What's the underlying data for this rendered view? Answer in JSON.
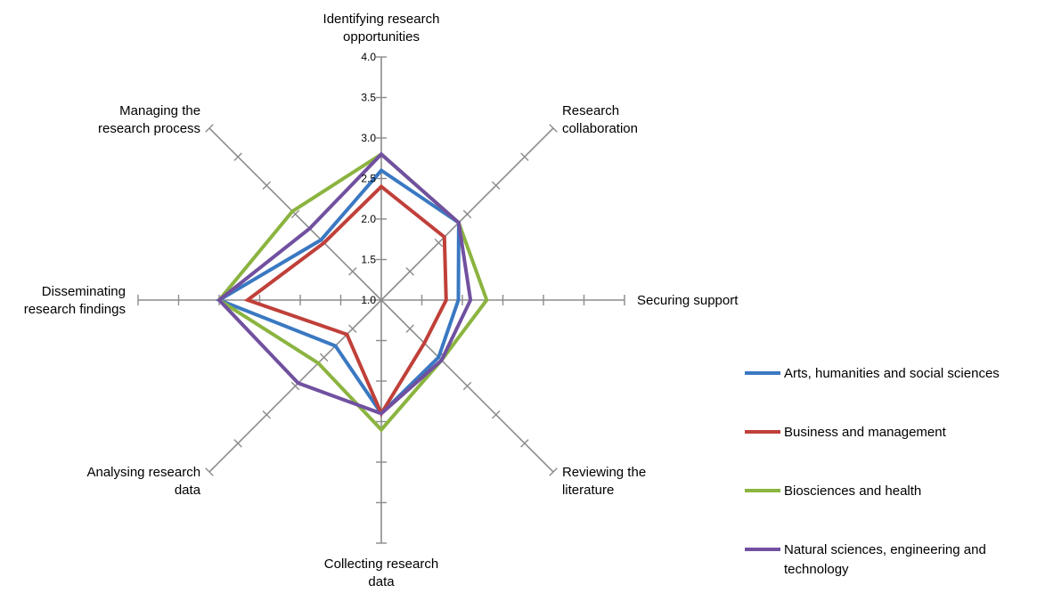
{
  "chart_data": {
    "type": "radar",
    "title": "",
    "axes": [
      {
        "label_lines": [
          "Identifying research",
          "opportunities"
        ]
      },
      {
        "label_lines": [
          "Research",
          "collaboration"
        ]
      },
      {
        "label_lines": [
          "Securing support"
        ]
      },
      {
        "label_lines": [
          "Reviewing the",
          "literature"
        ]
      },
      {
        "label_lines": [
          "Collecting research",
          "data"
        ]
      },
      {
        "label_lines": [
          "Analysing research",
          "data"
        ]
      },
      {
        "label_lines": [
          "Disseminating",
          "research findings"
        ]
      },
      {
        "label_lines": [
          "Managing the",
          "research process"
        ]
      }
    ],
    "rmin": 1.0,
    "rmax": 4.0,
    "tick_labels": [
      "1.0",
      "1.5",
      "2.0",
      "2.5",
      "3.0",
      "3.5",
      "4.0"
    ],
    "tick_values": [
      1.0,
      1.5,
      2.0,
      2.5,
      3.0,
      3.5,
      4.0
    ],
    "grid": false,
    "legend_position": "right",
    "series": [
      {
        "name": "Arts, humanities and social sciences",
        "color": "#3a78c2",
        "values": [
          2.6,
          2.35,
          1.95,
          2.0,
          2.4,
          1.8,
          3.0,
          2.05
        ]
      },
      {
        "name": "Business and management",
        "color": "#c0403a",
        "values": [
          2.4,
          2.1,
          1.8,
          1.75,
          2.4,
          1.6,
          2.65,
          2.0
        ]
      },
      {
        "name": "Biosciences and health",
        "color": "#8bb440",
        "values": [
          2.8,
          2.35,
          2.3,
          2.05,
          2.6,
          2.1,
          3.0,
          2.55
        ]
      },
      {
        "name": "Natural sciences, engineering and technology",
        "color": "#7150a0",
        "values": [
          2.8,
          2.35,
          2.1,
          2.05,
          2.4,
          2.45,
          3.0,
          2.25
        ]
      }
    ],
    "legend_lines": [
      [
        "Arts, humanities and social sciences"
      ],
      [
        "Business and management"
      ],
      [
        "Biosciences and health"
      ],
      [
        "Natural sciences, engineering and",
        "technology"
      ]
    ]
  }
}
